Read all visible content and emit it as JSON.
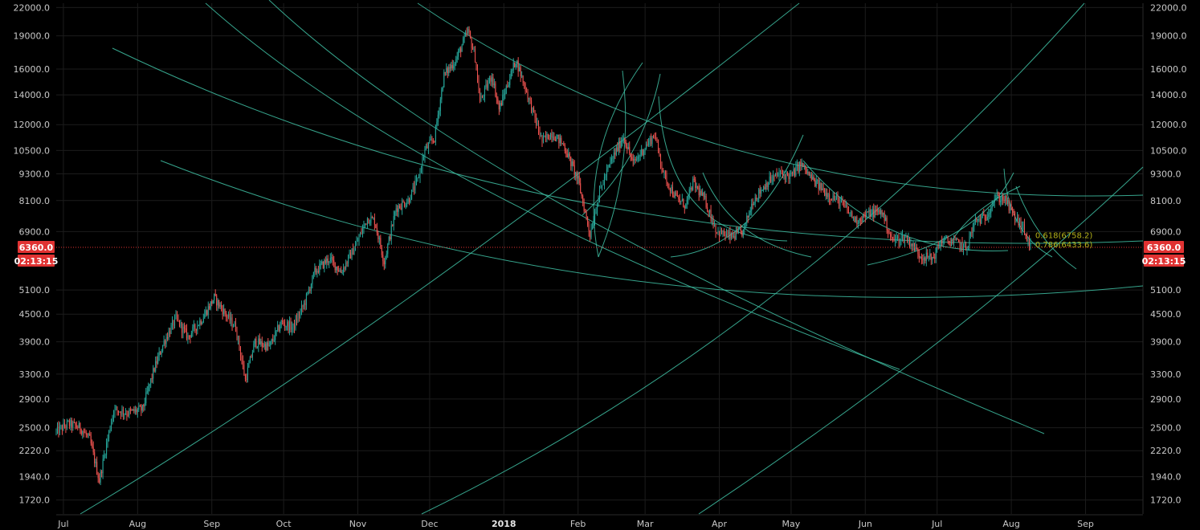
{
  "chart_data": {
    "type": "candlestick",
    "yscale": "log",
    "ylim": [
      1600,
      22500
    ],
    "y_ticks": [
      22000,
      19000,
      16000,
      14000,
      12000,
      10500,
      9300,
      8100,
      6900,
      5100,
      4500,
      3900,
      3300,
      2900,
      2500,
      2220,
      1940,
      1720
    ],
    "y_tick_labels": [
      "22000.0",
      "19000.0",
      "16000.0",
      "14000.0",
      "12000.0",
      "10500.0",
      "9300.0",
      "8100.0",
      "6900.0",
      "5100.0",
      "4500.0",
      "3900.0",
      "3300.0",
      "2900.0",
      "2500.0",
      "2220.0",
      "1940.0",
      "1720.0"
    ],
    "x_range": [
      "2017-06-28",
      "2018-09-25"
    ],
    "x_ticks": [
      {
        "date": "2017-07-01",
        "label": "Jul"
      },
      {
        "date": "2017-08-01",
        "label": "Aug"
      },
      {
        "date": "2017-09-01",
        "label": "Sep"
      },
      {
        "date": "2017-10-01",
        "label": "Oct"
      },
      {
        "date": "2017-11-01",
        "label": "Nov"
      },
      {
        "date": "2017-12-01",
        "label": "Dec"
      },
      {
        "date": "2018-01-01",
        "label": "2018",
        "bold": true
      },
      {
        "date": "2018-02-01",
        "label": "Feb"
      },
      {
        "date": "2018-03-01",
        "label": "Mar"
      },
      {
        "date": "2018-04-01",
        "label": "Apr"
      },
      {
        "date": "2018-05-01",
        "label": "May"
      },
      {
        "date": "2018-06-01",
        "label": "Jun"
      },
      {
        "date": "2018-07-01",
        "label": "Jul"
      },
      {
        "date": "2018-08-01",
        "label": "Aug"
      },
      {
        "date": "2018-09-01",
        "label": "Sep"
      }
    ],
    "price_path": [
      [
        "2017-06-28",
        2450
      ],
      [
        "2017-07-03",
        2550
      ],
      [
        "2017-07-08",
        2500
      ],
      [
        "2017-07-12",
        2350
      ],
      [
        "2017-07-16",
        1900
      ],
      [
        "2017-07-19",
        2300
      ],
      [
        "2017-07-22",
        2750
      ],
      [
        "2017-07-28",
        2700
      ],
      [
        "2017-08-03",
        2750
      ],
      [
        "2017-08-08",
        3400
      ],
      [
        "2017-08-12",
        3900
      ],
      [
        "2017-08-17",
        4400
      ],
      [
        "2017-08-22",
        4000
      ],
      [
        "2017-08-28",
        4400
      ],
      [
        "2017-09-02",
        4900
      ],
      [
        "2017-09-08",
        4400
      ],
      [
        "2017-09-11",
        4200
      ],
      [
        "2017-09-15",
        3200
      ],
      [
        "2017-09-19",
        3900
      ],
      [
        "2017-09-25",
        3800
      ],
      [
        "2017-09-30",
        4300
      ],
      [
        "2017-10-05",
        4200
      ],
      [
        "2017-10-10",
        4800
      ],
      [
        "2017-10-14",
        5600
      ],
      [
        "2017-10-20",
        6000
      ],
      [
        "2017-10-25",
        5600
      ],
      [
        "2017-10-31",
        6400
      ],
      [
        "2017-11-05",
        7400
      ],
      [
        "2017-11-08",
        7300
      ],
      [
        "2017-11-12",
        5900
      ],
      [
        "2017-11-17",
        7800
      ],
      [
        "2017-11-22",
        8100
      ],
      [
        "2017-11-26",
        9000
      ],
      [
        "2017-11-29",
        10500
      ],
      [
        "2017-12-03",
        11200
      ],
      [
        "2017-12-07",
        15500
      ],
      [
        "2017-12-12",
        16800
      ],
      [
        "2017-12-17",
        19500
      ],
      [
        "2017-12-20",
        17000
      ],
      [
        "2017-12-22",
        13500
      ],
      [
        "2017-12-27",
        15500
      ],
      [
        "2017-12-30",
        13000
      ],
      [
        "2018-01-06",
        16800
      ],
      [
        "2018-01-10",
        14500
      ],
      [
        "2018-01-17",
        11000
      ],
      [
        "2018-01-21",
        11500
      ],
      [
        "2018-01-26",
        10800
      ],
      [
        "2018-02-01",
        9000
      ],
      [
        "2018-02-06",
        6800
      ],
      [
        "2018-02-10",
        8500
      ],
      [
        "2018-02-15",
        10000
      ],
      [
        "2018-02-20",
        11300
      ],
      [
        "2018-02-24",
        9800
      ],
      [
        "2018-03-01",
        10700
      ],
      [
        "2018-03-05",
        11400
      ],
      [
        "2018-03-09",
        9200
      ],
      [
        "2018-03-14",
        8200
      ],
      [
        "2018-03-18",
        7900
      ],
      [
        "2018-03-21",
        8900
      ],
      [
        "2018-03-26",
        8100
      ],
      [
        "2018-03-31",
        6900
      ],
      [
        "2018-04-06",
        6700
      ],
      [
        "2018-04-11",
        6900
      ],
      [
        "2018-04-15",
        8100
      ],
      [
        "2018-04-21",
        8900
      ],
      [
        "2018-04-26",
        9300
      ],
      [
        "2018-05-01",
        9200
      ],
      [
        "2018-05-05",
        9800
      ],
      [
        "2018-05-10",
        9000
      ],
      [
        "2018-05-16",
        8400
      ],
      [
        "2018-05-22",
        8000
      ],
      [
        "2018-05-28",
        7300
      ],
      [
        "2018-06-03",
        7600
      ],
      [
        "2018-06-08",
        7650
      ],
      [
        "2018-06-12",
        6600
      ],
      [
        "2018-06-18",
        6700
      ],
      [
        "2018-06-24",
        6100
      ],
      [
        "2018-06-29",
        6000
      ],
      [
        "2018-07-03",
        6600
      ],
      [
        "2018-07-10",
        6500
      ],
      [
        "2018-07-13",
        6300
      ],
      [
        "2018-07-17",
        7300
      ],
      [
        "2018-07-21",
        7400
      ],
      [
        "2018-07-25",
        8200
      ],
      [
        "2018-07-29",
        8200
      ],
      [
        "2018-08-02",
        7500
      ],
      [
        "2018-08-06",
        7000
      ],
      [
        "2018-08-09",
        6360
      ]
    ],
    "annotations": [
      {
        "text": "0.618(6758.2)",
        "x": "2018-08-11",
        "y": 6758
      },
      {
        "text": "0.786(6433.6)",
        "x": "2018-08-11",
        "y": 6433
      }
    ],
    "last_price": {
      "value": "6360.0",
      "countdown": "02:13:15",
      "y": 6360
    }
  },
  "colors": {
    "background": "#000000",
    "grid": "#1c1c1c",
    "up_candle": "#26a69a",
    "down_candle": "#ef5350",
    "fib_arc": "#3fc1a5",
    "last_price": "#e03232",
    "axis_text": "#c8c8c8"
  }
}
